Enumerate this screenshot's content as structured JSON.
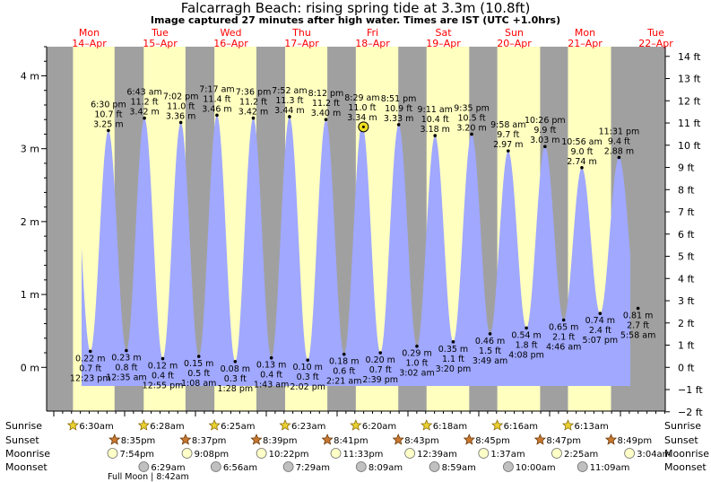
{
  "title": "Falcarragh Beach: rising  spring tide at 3.3m (10.8ft)",
  "subtitle": "Image captured 27 minutes after high water. Times are IST (UTC +1.0hrs)",
  "colors": {
    "day": "#ffffc0",
    "night": "#a0a0a0",
    "water": "#a0a8ff",
    "axis_day_label": "#ff0000"
  },
  "chart_data": {
    "type": "area",
    "title": "Falcarragh Beach: rising  spring tide at 3.3m (10.8ft)",
    "ylabel_left_unit": "m",
    "ylabel_right_unit": "ft",
    "ylim": [
      -0.6,
      4.4
    ],
    "left_ticks": [
      {
        "v": 0,
        "label": "0 m"
      },
      {
        "v": 1,
        "label": "1 m"
      },
      {
        "v": 2,
        "label": "2 m"
      },
      {
        "v": 3,
        "label": "3 m"
      },
      {
        "v": 4,
        "label": "4 m"
      }
    ],
    "right_ticks": [
      {
        "ft": -2,
        "label": "−2 ft"
      },
      {
        "ft": -1,
        "label": "−1 ft"
      },
      {
        "ft": 0,
        "label": "0 ft"
      },
      {
        "ft": 1,
        "label": "1 ft"
      },
      {
        "ft": 2,
        "label": "2 ft"
      },
      {
        "ft": 3,
        "label": "3 ft"
      },
      {
        "ft": 4,
        "label": "4 ft"
      },
      {
        "ft": 5,
        "label": "5 ft"
      },
      {
        "ft": 6,
        "label": "6 ft"
      },
      {
        "ft": 7,
        "label": "7 ft"
      },
      {
        "ft": 8,
        "label": "8 ft"
      },
      {
        "ft": 9,
        "label": "9 ft"
      },
      {
        "ft": 10,
        "label": "10 ft"
      },
      {
        "ft": 11,
        "label": "11 ft"
      },
      {
        "ft": 12,
        "label": "12 ft"
      },
      {
        "ft": 13,
        "label": "13 ft"
      },
      {
        "ft": 14,
        "label": "14 ft"
      }
    ],
    "days": [
      {
        "day": "Mon",
        "date": "14–Apr"
      },
      {
        "day": "Tue",
        "date": "15–Apr"
      },
      {
        "day": "Wed",
        "date": "16–Apr"
      },
      {
        "day": "Thu",
        "date": "17–Apr"
      },
      {
        "day": "Fri",
        "date": "18–Apr"
      },
      {
        "day": "Sat",
        "date": "19–Apr"
      },
      {
        "day": "Sun",
        "date": "20–Apr"
      },
      {
        "day": "Mon",
        "date": "21–Apr"
      },
      {
        "day": "Tue",
        "date": "22–Apr"
      }
    ],
    "extremes": [
      {
        "type": "low",
        "day": 0,
        "time": "12:23 pm",
        "m": "0.22 m",
        "ft": "0.7 ft",
        "v": 0.22
      },
      {
        "type": "high",
        "day": 0,
        "time": "6:30 pm",
        "m": "3.25 m",
        "ft": "10.7 ft",
        "v": 3.25
      },
      {
        "type": "low",
        "day": 1,
        "time": "12:35 am",
        "m": "0.23 m",
        "ft": "0.8 ft",
        "v": 0.23
      },
      {
        "type": "high",
        "day": 1,
        "time": "6:43 am",
        "m": "3.42 m",
        "ft": "11.2 ft",
        "v": 3.42
      },
      {
        "type": "low",
        "day": 1,
        "time": "12:55 pm",
        "m": "0.12 m",
        "ft": "0.4 ft",
        "v": 0.12
      },
      {
        "type": "high",
        "day": 1,
        "time": "7:02 pm",
        "m": "3.36 m",
        "ft": "11.0 ft",
        "v": 3.36
      },
      {
        "type": "low",
        "day": 2,
        "time": "1:08 am",
        "m": "0.15 m",
        "ft": "0.5 ft",
        "v": 0.15
      },
      {
        "type": "high",
        "day": 2,
        "time": "7:17 am",
        "m": "3.46 m",
        "ft": "11.4 ft",
        "v": 3.46
      },
      {
        "type": "low",
        "day": 2,
        "time": "1:28 pm",
        "m": "0.08 m",
        "ft": "0.3 ft",
        "v": 0.08
      },
      {
        "type": "high",
        "day": 2,
        "time": "7:36 pm",
        "m": "3.42 m",
        "ft": "11.2 ft",
        "v": 3.42
      },
      {
        "type": "low",
        "day": 3,
        "time": "1:43 am",
        "m": "0.13 m",
        "ft": "0.4 ft",
        "v": 0.13
      },
      {
        "type": "high",
        "day": 3,
        "time": "7:52 am",
        "m": "3.44 m",
        "ft": "11.3 ft",
        "v": 3.44
      },
      {
        "type": "low",
        "day": 3,
        "time": "2:02 pm",
        "m": "0.10 m",
        "ft": "0.3 ft",
        "v": 0.1
      },
      {
        "type": "high",
        "day": 3,
        "time": "8:12 pm",
        "m": "3.40 m",
        "ft": "11.2 ft",
        "v": 3.4
      },
      {
        "type": "low",
        "day": 4,
        "time": "2:21 am",
        "m": "0.18 m",
        "ft": "0.6 ft",
        "v": 0.18
      },
      {
        "type": "high",
        "day": 4,
        "time": "8:29 am",
        "m": "3.34 m",
        "ft": "11.0 ft",
        "v": 3.34
      },
      {
        "type": "low",
        "day": 4,
        "time": "2:39 pm",
        "m": "0.20 m",
        "ft": "0.7 ft",
        "v": 0.2
      },
      {
        "type": "high",
        "day": 4,
        "time": "8:51 pm",
        "m": "3.33 m",
        "ft": "10.9 ft",
        "v": 3.33
      },
      {
        "type": "low",
        "day": 5,
        "time": "3:02 am",
        "m": "0.29 m",
        "ft": "1.0 ft",
        "v": 0.29
      },
      {
        "type": "high",
        "day": 5,
        "time": "9:11 am",
        "m": "3.18 m",
        "ft": "10.4 ft",
        "v": 3.18
      },
      {
        "type": "low",
        "day": 5,
        "time": "3:20 pm",
        "m": "0.35 m",
        "ft": "1.1 ft",
        "v": 0.35
      },
      {
        "type": "high",
        "day": 5,
        "time": "9:35 pm",
        "m": "3.20 m",
        "ft": "10.5 ft",
        "v": 3.2
      },
      {
        "type": "low",
        "day": 6,
        "time": "3:49 am",
        "m": "0.46 m",
        "ft": "1.5 ft",
        "v": 0.46
      },
      {
        "type": "high",
        "day": 6,
        "time": "9:58 am",
        "m": "2.97 m",
        "ft": "9.7 ft",
        "v": 2.97
      },
      {
        "type": "low",
        "day": 6,
        "time": "4:08 pm",
        "m": "0.54 m",
        "ft": "1.8 ft",
        "v": 0.54
      },
      {
        "type": "high",
        "day": 6,
        "time": "10:26 pm",
        "m": "3.03 m",
        "ft": "9.9 ft",
        "v": 3.03
      },
      {
        "type": "low",
        "day": 7,
        "time": "4:46 am",
        "m": "0.65 m",
        "ft": "2.1 ft",
        "v": 0.65
      },
      {
        "type": "high",
        "day": 7,
        "time": "10:56 am",
        "m": "2.74 m",
        "ft": "9.0 ft",
        "v": 2.74
      },
      {
        "type": "low",
        "day": 7,
        "time": "5:07 pm",
        "m": "0.74 m",
        "ft": "2.4 ft",
        "v": 0.74
      },
      {
        "type": "high",
        "day": 7,
        "time": "11:31 pm",
        "m": "2.88 m",
        "ft": "9.4 ft",
        "v": 2.88
      },
      {
        "type": "low",
        "day": 8,
        "time": "5:58 am",
        "m": "0.81 m",
        "ft": "2.7 ft",
        "v": 0.81
      }
    ],
    "now": {
      "day": 4,
      "time": "8:56 am",
      "v": 3.3
    },
    "sun": [
      {
        "sunrise": "6:30am",
        "sunset": "8:35pm"
      },
      {
        "sunrise": "6:28am",
        "sunset": "8:37pm"
      },
      {
        "sunrise": "6:25am",
        "sunset": "8:39pm"
      },
      {
        "sunrise": "6:23am",
        "sunset": "8:41pm"
      },
      {
        "sunrise": "6:20am",
        "sunset": "8:43pm"
      },
      {
        "sunrise": "6:18am",
        "sunset": "8:45pm"
      },
      {
        "sunrise": "6:16am",
        "sunset": "8:47pm"
      },
      {
        "sunrise": "6:13am",
        "sunset": "8:49pm"
      }
    ],
    "moonrise": [
      {
        "day": 0,
        "time": "7:54pm"
      },
      {
        "day": 1,
        "time": "9:08pm"
      },
      {
        "day": 2,
        "time": "10:22pm"
      },
      {
        "day": 3,
        "time": "11:33pm"
      },
      {
        "day": 5,
        "time": "12:39am"
      },
      {
        "day": 6,
        "time": "1:37am"
      },
      {
        "day": 7,
        "time": "2:25am"
      },
      {
        "day": 8,
        "time": "3:04am"
      }
    ],
    "moonset": [
      {
        "day": 1,
        "time": "6:29am"
      },
      {
        "day": 2,
        "time": "6:56am"
      },
      {
        "day": 3,
        "time": "7:29am"
      },
      {
        "day": 4,
        "time": "8:09am"
      },
      {
        "day": 5,
        "time": "8:59am"
      },
      {
        "day": 6,
        "time": "10:00am"
      },
      {
        "day": 7,
        "time": "11:09am"
      }
    ],
    "full_moon": {
      "day": 1,
      "time": "8:42am",
      "label": "Full Moon | 8:42am"
    },
    "row_labels": [
      "Sunrise",
      "Sunset",
      "Moonrise",
      "Moonset"
    ]
  }
}
